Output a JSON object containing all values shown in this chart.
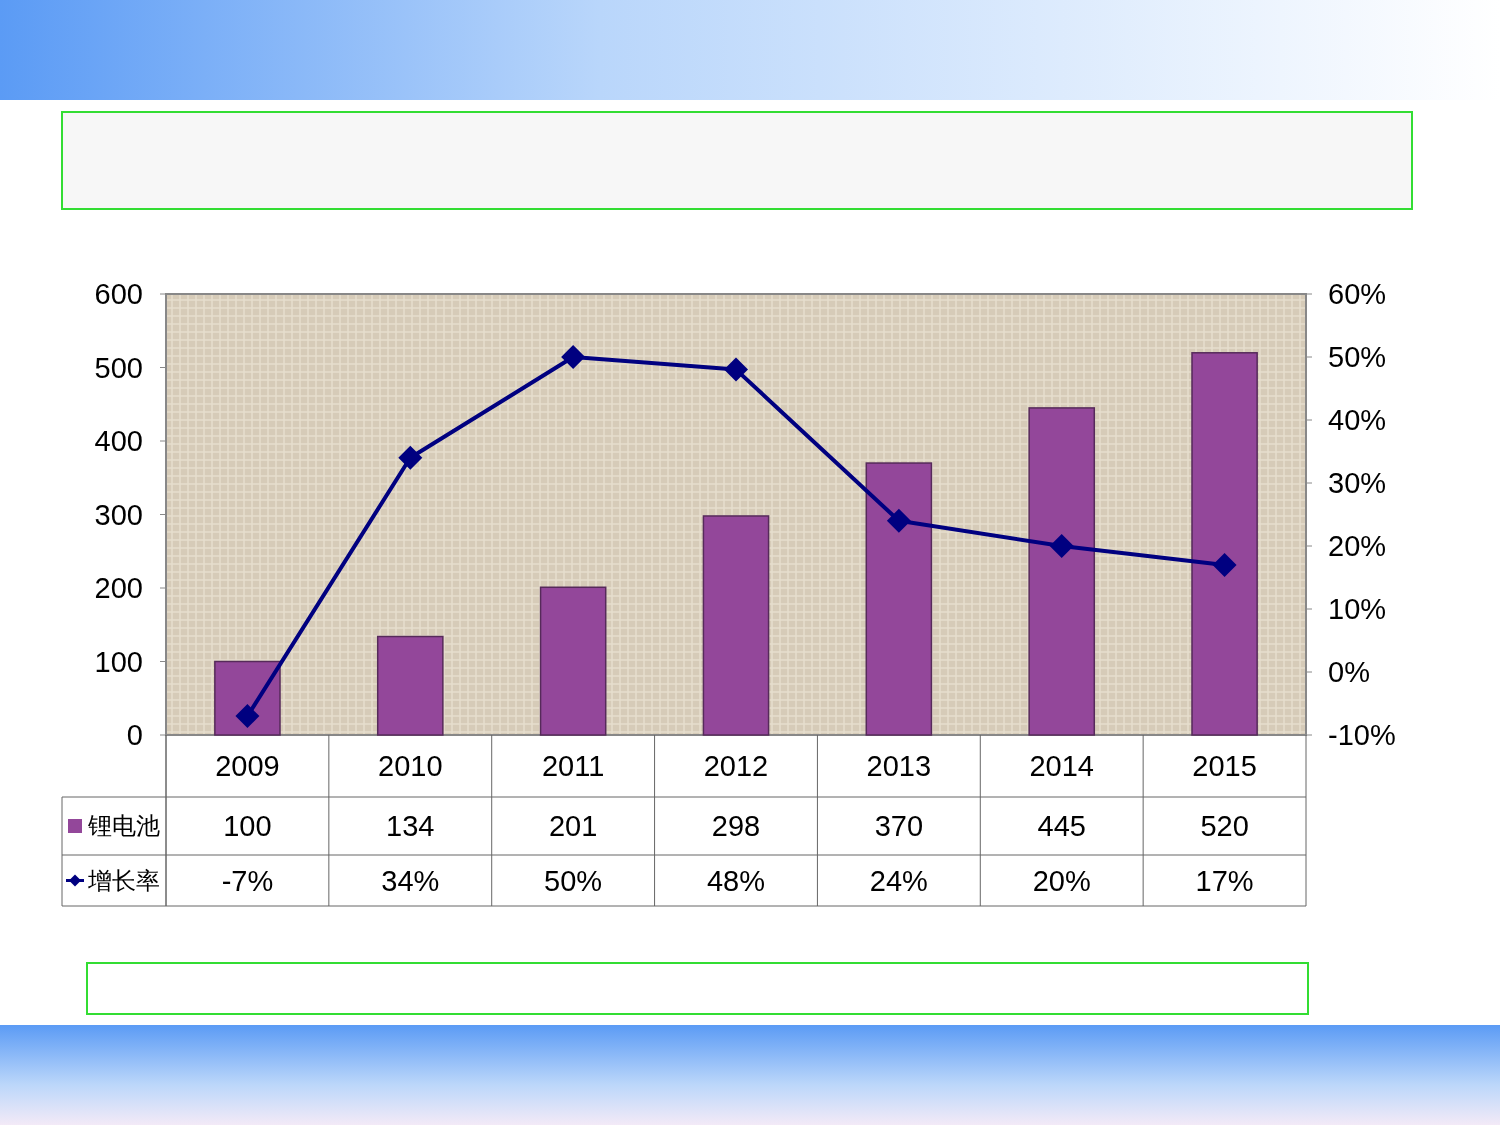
{
  "chart_data": {
    "type": "bar",
    "categories": [
      "2009",
      "2010",
      "2011",
      "2012",
      "2013",
      "2014",
      "2015"
    ],
    "series": [
      {
        "name": "锂电池",
        "color": "#93479a",
        "values": [
          100,
          134,
          201,
          298,
          370,
          445,
          520
        ],
        "value_labels": [
          "100",
          "134",
          "201",
          "298",
          "370",
          "445",
          "520"
        ]
      },
      {
        "name": "增长率",
        "type": "line",
        "axis": "y2",
        "color": "#000080",
        "values": [
          -7,
          34,
          50,
          48,
          24,
          20,
          17
        ],
        "value_labels": [
          "-7%",
          "34%",
          "50%",
          "48%",
          "24%",
          "20%",
          "17%"
        ]
      }
    ],
    "ylim": [
      0,
      600
    ],
    "yticks": [
      0,
      100,
      200,
      300,
      400,
      500,
      600
    ],
    "y2lim": [
      -10,
      60
    ],
    "y2ticks": [
      {
        "value": -10,
        "label": "-10%"
      },
      {
        "value": 0,
        "label": "0%"
      },
      {
        "value": 10,
        "label": "10%"
      },
      {
        "value": 20,
        "label": "20%"
      },
      {
        "value": 30,
        "label": "30%"
      },
      {
        "value": 40,
        "label": "40%"
      },
      {
        "value": 50,
        "label": "50%"
      },
      {
        "value": 60,
        "label": "60%"
      }
    ],
    "marker": "diamond",
    "legend": "bottom left",
    "grid": false
  }
}
